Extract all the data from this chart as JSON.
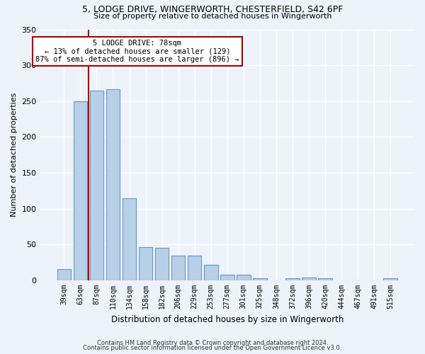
{
  "title_line1": "5, LODGE DRIVE, WINGERWORTH, CHESTERFIELD, S42 6PF",
  "title_line2": "Size of property relative to detached houses in Wingerworth",
  "xlabel": "Distribution of detached houses by size in Wingerworth",
  "ylabel": "Number of detached properties",
  "categories": [
    "39sqm",
    "63sqm",
    "87sqm",
    "110sqm",
    "134sqm",
    "158sqm",
    "182sqm",
    "206sqm",
    "229sqm",
    "253sqm",
    "277sqm",
    "301sqm",
    "325sqm",
    "348sqm",
    "372sqm",
    "396sqm",
    "420sqm",
    "444sqm",
    "467sqm",
    "491sqm",
    "515sqm"
  ],
  "values": [
    16,
    250,
    265,
    267,
    115,
    46,
    45,
    35,
    35,
    22,
    8,
    8,
    3,
    0,
    3,
    4,
    3,
    0,
    0,
    0,
    3
  ],
  "bar_color": "#b8cfe8",
  "bar_edge_color": "#6698c8",
  "background_color": "#eef2fb",
  "grid_color": "#ffffff",
  "vline_x_index": 1.5,
  "vline_color": "#aa0000",
  "annotation_text_line1": "5 LODGE DRIVE: 78sqm",
  "annotation_text_line2": "← 13% of detached houses are smaller (129)",
  "annotation_text_line3": "87% of semi-detached houses are larger (896) →",
  "annotation_box_color": "#ffffff",
  "annotation_box_edge_color": "#aa0000",
  "footer_line1": "Contains HM Land Registry data © Crown copyright and database right 2024.",
  "footer_line2": "Contains public sector information licensed under the Open Government Licence v3.0.",
  "ylim": [
    0,
    350
  ],
  "yticks": [
    0,
    50,
    100,
    150,
    200,
    250,
    300,
    350
  ]
}
